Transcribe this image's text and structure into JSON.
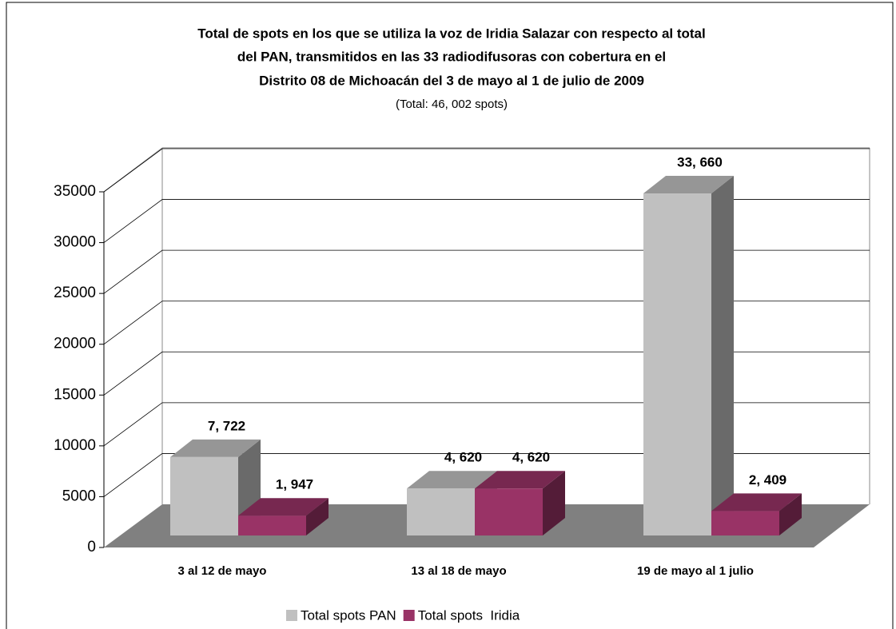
{
  "chart_data": {
    "type": "bar3d",
    "title": [
      "Total de spots en los que se utiliza la voz de Iridia Salazar con respecto al total",
      "del PAN, transmitidos en las 33 radiodifusoras con cobertura en el",
      "Distrito 08 de Michoacán del  3 de mayo al 1 de julio de 2009"
    ],
    "subtitle": "(Total: 46, 002 spots)",
    "categories": [
      "3 al 12 de mayo",
      "13 al 18 de mayo",
      "19 de mayo al 1 julio"
    ],
    "series": [
      {
        "name": "Total spots PAN",
        "color": "#c0c0c0",
        "values": [
          7722,
          4620,
          33660
        ],
        "value_labels": [
          "7, 722",
          "4, 620",
          "33, 660"
        ]
      },
      {
        "name": "Total spots  Iridia",
        "color": "#993366",
        "values": [
          1947,
          4620,
          2409
        ],
        "value_labels": [
          "1, 947",
          "4, 620",
          "2, 409"
        ]
      }
    ],
    "ylim": [
      0,
      35000
    ],
    "yticks": [
      0,
      5000,
      10000,
      15000,
      20000,
      25000,
      30000,
      35000
    ],
    "grid": true,
    "legend": "bottom"
  }
}
